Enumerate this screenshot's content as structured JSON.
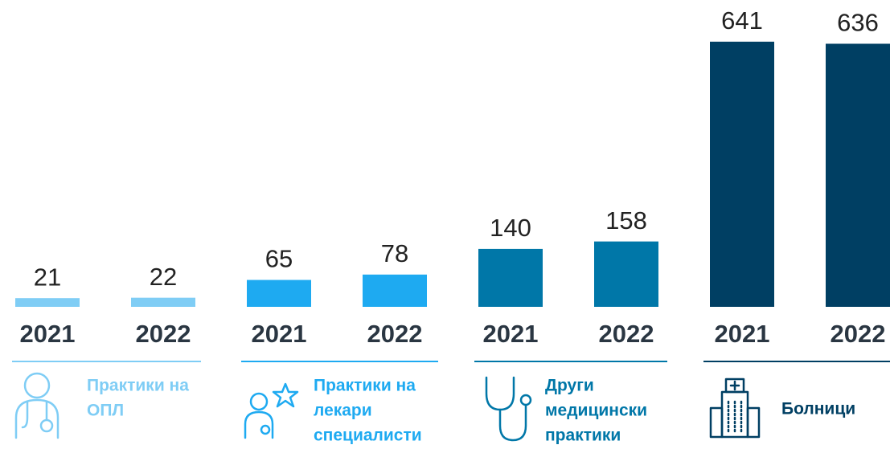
{
  "chart_data": {
    "type": "bar",
    "groups": [
      {
        "label": [
          "Практики на",
          "ОПЛ"
        ],
        "color": "#7fcdf5",
        "categories": [
          "2021",
          "2022"
        ],
        "values": [
          21,
          22
        ]
      },
      {
        "label": [
          "Практики на",
          "лекари",
          "специалисти"
        ],
        "color": "#1eaaf1",
        "categories": [
          "2021",
          "2022"
        ],
        "values": [
          65,
          78
        ]
      },
      {
        "label": [
          "Други",
          "медицински",
          "практики"
        ],
        "color": "#0077a8",
        "categories": [
          "2021",
          "2022"
        ],
        "values": [
          140,
          158
        ]
      },
      {
        "label": [
          "Болници"
        ],
        "color": "#003f63",
        "categories": [
          "2021",
          "2022"
        ],
        "values": [
          641,
          636
        ]
      }
    ]
  }
}
